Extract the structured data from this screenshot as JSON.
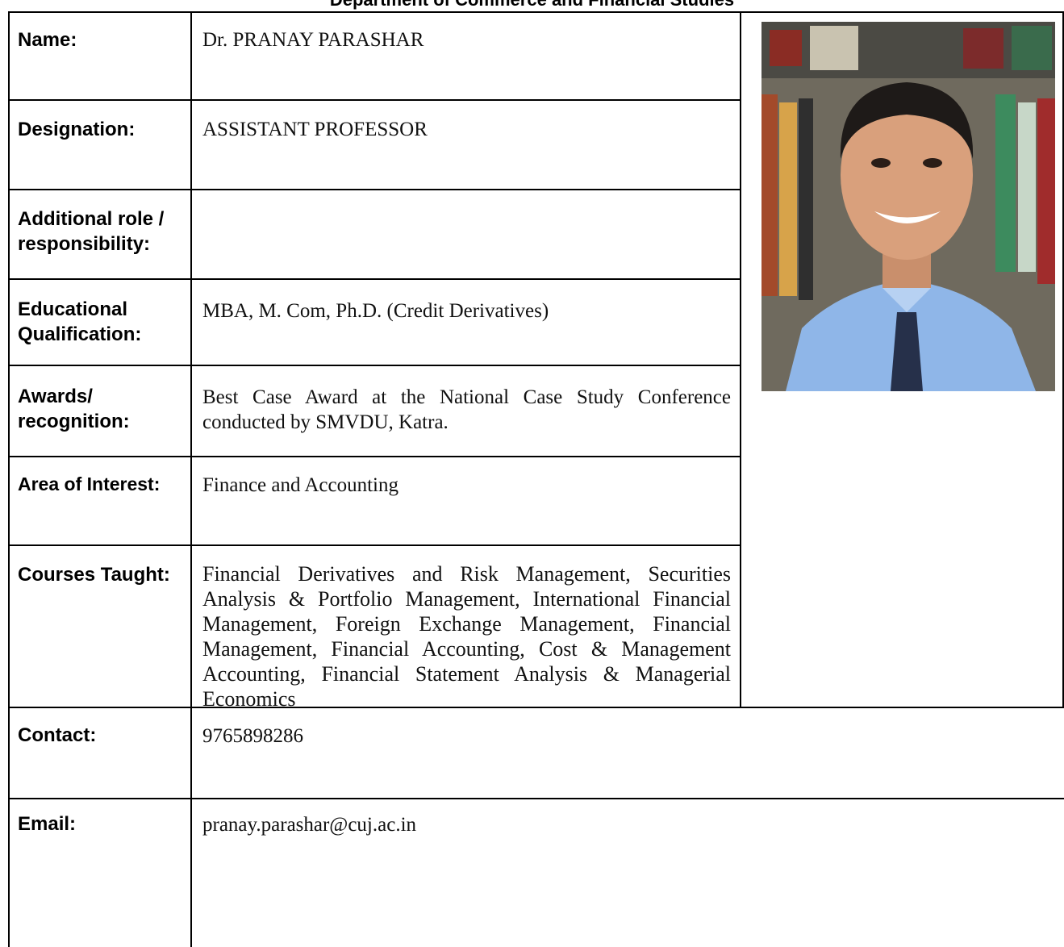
{
  "header": {
    "title": "Department of Commerce and Financial Studies"
  },
  "profile": {
    "rows": [
      {
        "label": "Name:",
        "value": "Dr. PRANAY PARASHAR"
      },
      {
        "label": "Designation:",
        "value": "ASSISTANT PROFESSOR"
      },
      {
        "label": "Additional role / responsibility:"
      },
      {
        "label": "Educational Qualification:",
        "value": "MBA, M. Com, Ph.D. (Credit Derivatives)"
      },
      {
        "label": "Awards/ recognition:",
        "value": "Best Case Award at the National Case Study Conference conducted by SMVDU, Katra."
      },
      {
        "label": "Area of Interest:",
        "value": "Finance and Accounting"
      },
      {
        "label": "Courses Taught:",
        "value": "Financial Derivatives and Risk Management, Securities Analysis & Portfolio Management, International Financial Management, Foreign Exchange Management, Financial Management, Financial Accounting, Cost & Management Accounting, Financial Statement Analysis & Managerial Economics"
      },
      {
        "label": "Contact:",
        "value": "9765898286"
      },
      {
        "label": "Email:",
        "value": "pranay.parashar@cuj.ac.in"
      }
    ]
  }
}
